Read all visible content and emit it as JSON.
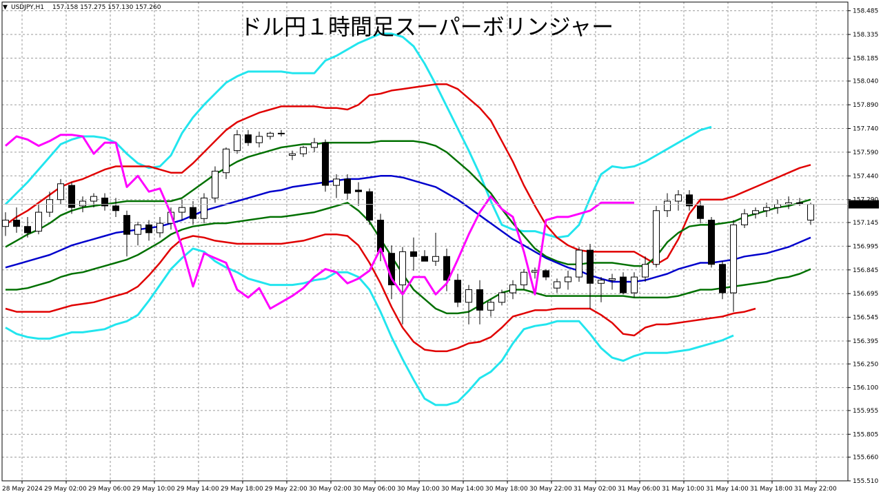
{
  "symbol_info": {
    "symbol": "USDJPY,H1",
    "ohlc": "157.158 157.275 157.130 157.260"
  },
  "chart_data": {
    "type": "candlestick",
    "title": "ドル円１時間足スーパーボリンジャー",
    "grid": true,
    "ylim": [
      155.51,
      158.54
    ],
    "y_ticks": [
      "158.485",
      "158.335",
      "158.185",
      "158.040",
      "157.890",
      "157.740",
      "157.590",
      "157.440",
      "157.290",
      "157.145",
      "156.995",
      "156.845",
      "156.695",
      "156.545",
      "156.395",
      "156.250",
      "156.100",
      "155.955",
      "155.805",
      "155.660",
      "155.510"
    ],
    "x_tick_labels": [
      "28 May 2024",
      "29 May 02:00",
      "29 May 06:00",
      "29 May 10:00",
      "29 May 14:00",
      "29 May 18:00",
      "29 May 22:00",
      "30 May 02:00",
      "30 May 06:00",
      "30 May 10:00",
      "30 May 14:00",
      "30 May 18:00",
      "30 May 22:00",
      "31 May 02:00",
      "31 May 06:00",
      "31 May 10:00",
      "31 May 14:00",
      "31 May 18:00",
      "31 May 22:00"
    ],
    "current_price": "157.260",
    "colors": {
      "up_candle": "#ffffff",
      "down_candle": "#000000",
      "sma": "#0000cc",
      "band_1sigma": "#007000",
      "band_2sigma": "#e00000",
      "band_3sigma": "#22e5ee",
      "lagging_span": "#ff00ff",
      "grid": "#9a9a9a",
      "current_price_tag": "#000000"
    },
    "candles": [
      {
        "o": 157.12,
        "h": 157.21,
        "l": 157.06,
        "c": 157.16
      },
      {
        "o": 157.16,
        "h": 157.24,
        "l": 157.08,
        "c": 157.12
      },
      {
        "o": 157.12,
        "h": 157.18,
        "l": 157.05,
        "c": 157.08
      },
      {
        "o": 157.09,
        "h": 157.26,
        "l": 157.07,
        "c": 157.21
      },
      {
        "o": 157.21,
        "h": 157.34,
        "l": 157.18,
        "c": 157.29
      },
      {
        "o": 157.29,
        "h": 157.42,
        "l": 157.26,
        "c": 157.39
      },
      {
        "o": 157.38,
        "h": 157.4,
        "l": 157.2,
        "c": 157.24
      },
      {
        "o": 157.25,
        "h": 157.31,
        "l": 157.21,
        "c": 157.28
      },
      {
        "o": 157.28,
        "h": 157.33,
        "l": 157.24,
        "c": 157.31
      },
      {
        "o": 157.3,
        "h": 157.33,
        "l": 157.22,
        "c": 157.25
      },
      {
        "o": 157.25,
        "h": 157.3,
        "l": 157.18,
        "c": 157.22
      },
      {
        "o": 157.19,
        "h": 157.22,
        "l": 156.93,
        "c": 157.07
      },
      {
        "o": 157.07,
        "h": 157.15,
        "l": 157.0,
        "c": 157.13
      },
      {
        "o": 157.13,
        "h": 157.16,
        "l": 157.03,
        "c": 157.08
      },
      {
        "o": 157.08,
        "h": 157.18,
        "l": 157.05,
        "c": 157.14
      },
      {
        "o": 157.14,
        "h": 157.24,
        "l": 157.1,
        "c": 157.21
      },
      {
        "o": 157.21,
        "h": 157.29,
        "l": 157.16,
        "c": 157.24
      },
      {
        "o": 157.24,
        "h": 157.28,
        "l": 157.13,
        "c": 157.17
      },
      {
        "o": 157.17,
        "h": 157.33,
        "l": 157.14,
        "c": 157.3
      },
      {
        "o": 157.3,
        "h": 157.5,
        "l": 157.27,
        "c": 157.47
      },
      {
        "o": 157.46,
        "h": 157.62,
        "l": 157.42,
        "c": 157.61
      },
      {
        "o": 157.6,
        "h": 157.73,
        "l": 157.58,
        "c": 157.7
      },
      {
        "o": 157.7,
        "h": 157.73,
        "l": 157.63,
        "c": 157.65
      },
      {
        "o": 157.65,
        "h": 157.72,
        "l": 157.62,
        "c": 157.69
      },
      {
        "o": 157.69,
        "h": 157.72,
        "l": 157.67,
        "c": 157.71
      },
      {
        "o": 157.71,
        "h": 157.73,
        "l": 157.69,
        "c": 157.71
      },
      {
        "o": 157.57,
        "h": 157.6,
        "l": 157.54,
        "c": 157.58
      },
      {
        "o": 157.58,
        "h": 157.63,
        "l": 157.56,
        "c": 157.62
      },
      {
        "o": 157.62,
        "h": 157.68,
        "l": 157.59,
        "c": 157.65
      },
      {
        "o": 157.65,
        "h": 157.67,
        "l": 157.34,
        "c": 157.38
      },
      {
        "o": 157.38,
        "h": 157.45,
        "l": 157.3,
        "c": 157.42
      },
      {
        "o": 157.42,
        "h": 157.45,
        "l": 157.29,
        "c": 157.33
      },
      {
        "o": 157.35,
        "h": 157.4,
        "l": 157.25,
        "c": 157.34
      },
      {
        "o": 157.34,
        "h": 157.36,
        "l": 157.13,
        "c": 157.16
      },
      {
        "o": 157.16,
        "h": 157.2,
        "l": 156.9,
        "c": 156.96
      },
      {
        "o": 156.95,
        "h": 157.0,
        "l": 156.66,
        "c": 156.75
      },
      {
        "o": 156.75,
        "h": 156.99,
        "l": 156.5,
        "c": 156.96
      },
      {
        "o": 156.96,
        "h": 157.05,
        "l": 156.84,
        "c": 156.93
      },
      {
        "o": 156.93,
        "h": 156.97,
        "l": 156.9,
        "c": 156.9
      },
      {
        "o": 156.9,
        "h": 157.08,
        "l": 156.87,
        "c": 156.93
      },
      {
        "o": 156.93,
        "h": 156.98,
        "l": 156.71,
        "c": 156.78
      },
      {
        "o": 156.78,
        "h": 156.82,
        "l": 156.61,
        "c": 156.64
      },
      {
        "o": 156.64,
        "h": 156.75,
        "l": 156.5,
        "c": 156.72
      },
      {
        "o": 156.72,
        "h": 156.78,
        "l": 156.5,
        "c": 156.59
      },
      {
        "o": 156.59,
        "h": 156.66,
        "l": 156.55,
        "c": 156.64
      },
      {
        "o": 156.64,
        "h": 156.72,
        "l": 156.62,
        "c": 156.7
      },
      {
        "o": 156.7,
        "h": 156.78,
        "l": 156.66,
        "c": 156.75
      },
      {
        "o": 156.75,
        "h": 156.85,
        "l": 156.72,
        "c": 156.83
      },
      {
        "o": 156.83,
        "h": 156.86,
        "l": 156.79,
        "c": 156.84
      },
      {
        "o": 156.84,
        "h": 156.85,
        "l": 156.78,
        "c": 156.8
      },
      {
        "o": 156.73,
        "h": 156.79,
        "l": 156.7,
        "c": 156.77
      },
      {
        "o": 156.77,
        "h": 156.84,
        "l": 156.72,
        "c": 156.8
      },
      {
        "o": 156.8,
        "h": 156.99,
        "l": 156.77,
        "c": 156.97
      },
      {
        "o": 156.97,
        "h": 157.01,
        "l": 156.6,
        "c": 156.76
      },
      {
        "o": 156.76,
        "h": 156.8,
        "l": 156.64,
        "c": 156.78
      },
      {
        "o": 156.78,
        "h": 156.82,
        "l": 156.72,
        "c": 156.79
      },
      {
        "o": 156.8,
        "h": 156.83,
        "l": 156.69,
        "c": 156.7
      },
      {
        "o": 156.7,
        "h": 156.83,
        "l": 156.67,
        "c": 156.8
      },
      {
        "o": 156.8,
        "h": 156.93,
        "l": 156.77,
        "c": 156.88
      },
      {
        "o": 156.88,
        "h": 157.25,
        "l": 156.86,
        "c": 157.22
      },
      {
        "o": 157.22,
        "h": 157.33,
        "l": 157.18,
        "c": 157.28
      },
      {
        "o": 157.28,
        "h": 157.35,
        "l": 157.22,
        "c": 157.32
      },
      {
        "o": 157.32,
        "h": 157.35,
        "l": 157.22,
        "c": 157.25
      },
      {
        "o": 157.25,
        "h": 157.28,
        "l": 157.14,
        "c": 157.17
      },
      {
        "o": 157.16,
        "h": 157.18,
        "l": 156.86,
        "c": 156.88
      },
      {
        "o": 156.88,
        "h": 156.9,
        "l": 156.66,
        "c": 156.7
      },
      {
        "o": 156.7,
        "h": 157.16,
        "l": 156.58,
        "c": 157.13
      },
      {
        "o": 157.13,
        "h": 157.23,
        "l": 157.11,
        "c": 157.2
      },
      {
        "o": 157.2,
        "h": 157.24,
        "l": 157.17,
        "c": 157.22
      },
      {
        "o": 157.22,
        "h": 157.27,
        "l": 157.18,
        "c": 157.24
      },
      {
        "o": 157.24,
        "h": 157.29,
        "l": 157.2,
        "c": 157.26
      },
      {
        "o": 157.26,
        "h": 157.31,
        "l": 157.23,
        "c": 157.27
      },
      {
        "o": 157.27,
        "h": 157.3,
        "l": 157.25,
        "c": 157.27
      },
      {
        "o": 157.16,
        "h": 157.27,
        "l": 157.13,
        "c": 157.26
      }
    ],
    "sma": [
      156.86,
      156.88,
      156.9,
      156.92,
      156.94,
      156.97,
      157.0,
      157.02,
      157.04,
      157.06,
      157.08,
      157.09,
      157.1,
      157.11,
      157.12,
      157.14,
      157.16,
      157.19,
      157.22,
      157.24,
      157.26,
      157.28,
      157.3,
      157.32,
      157.34,
      157.35,
      157.37,
      157.38,
      157.39,
      157.4,
      157.41,
      157.42,
      157.42,
      157.43,
      157.44,
      157.44,
      157.43,
      157.41,
      157.39,
      157.37,
      157.33,
      157.29,
      157.24,
      157.19,
      157.14,
      157.09,
      157.04,
      157.0,
      156.96,
      156.92,
      156.89,
      156.86,
      156.84,
      156.81,
      156.79,
      156.77,
      156.77,
      156.77,
      156.78,
      156.8,
      156.82,
      156.85,
      156.87,
      156.89,
      156.89,
      156.9,
      156.91,
      156.93,
      156.94,
      156.95,
      156.97,
      156.99,
      157.02,
      157.05
    ],
    "bands": {
      "p1": [
        156.99,
        157.03,
        157.07,
        157.1,
        157.14,
        157.19,
        157.22,
        157.24,
        157.25,
        157.26,
        157.27,
        157.28,
        157.28,
        157.28,
        157.28,
        157.28,
        157.3,
        157.35,
        157.4,
        157.45,
        157.49,
        157.53,
        157.56,
        157.58,
        157.6,
        157.62,
        157.63,
        157.64,
        157.64,
        157.65,
        157.65,
        157.65,
        157.65,
        157.65,
        157.66,
        157.66,
        157.66,
        157.66,
        157.65,
        157.63,
        157.59,
        157.53,
        157.47,
        157.4,
        157.33,
        157.23,
        157.14,
        157.06,
        156.98,
        156.93,
        156.9,
        156.88,
        156.88,
        156.89,
        156.89,
        156.89,
        156.88,
        156.87,
        156.87,
        156.93,
        157.02,
        157.08,
        157.12,
        157.13,
        157.13,
        157.14,
        157.15,
        157.18,
        157.2,
        157.22,
        157.24,
        157.25,
        157.27,
        157.29
      ],
      "m1": [
        156.72,
        156.72,
        156.73,
        156.75,
        156.77,
        156.8,
        156.82,
        156.83,
        156.85,
        156.87,
        156.89,
        156.91,
        156.94,
        156.98,
        157.02,
        157.07,
        157.1,
        157.12,
        157.13,
        157.14,
        157.14,
        157.15,
        157.16,
        157.17,
        157.18,
        157.18,
        157.19,
        157.2,
        157.21,
        157.23,
        157.25,
        157.27,
        157.22,
        157.15,
        157.04,
        156.93,
        156.82,
        156.72,
        156.66,
        156.6,
        156.57,
        156.57,
        156.58,
        156.62,
        156.66,
        156.7,
        156.72,
        156.72,
        156.7,
        156.68,
        156.68,
        156.68,
        156.68,
        156.68,
        156.68,
        156.68,
        156.68,
        156.67,
        156.67,
        156.67,
        156.67,
        156.68,
        156.7,
        156.72,
        156.72,
        156.73,
        156.74,
        156.75,
        156.76,
        156.77,
        156.79,
        156.8,
        156.82,
        156.85
      ],
      "p2": [
        157.13,
        157.18,
        157.22,
        157.27,
        157.32,
        157.37,
        157.4,
        157.42,
        157.45,
        157.48,
        157.5,
        157.5,
        157.5,
        157.5,
        157.48,
        157.46,
        157.46,
        157.52,
        157.59,
        157.66,
        157.73,
        157.78,
        157.81,
        157.84,
        157.86,
        157.88,
        157.88,
        157.88,
        157.88,
        157.87,
        157.87,
        157.86,
        157.89,
        157.95,
        157.96,
        157.98,
        157.99,
        158.0,
        158.01,
        158.02,
        158.02,
        157.99,
        157.93,
        157.87,
        157.79,
        157.66,
        157.53,
        157.38,
        157.25,
        157.13,
        157.05,
        157.0,
        156.97,
        156.96,
        156.96,
        156.96,
        156.96,
        156.96,
        156.92,
        156.88,
        156.92,
        157.04,
        157.2,
        157.29,
        157.29,
        157.29,
        157.31,
        157.34,
        157.37,
        157.4,
        157.43,
        157.46,
        157.49,
        157.51
      ],
      "m2": [
        156.6,
        156.58,
        156.58,
        156.58,
        156.58,
        156.6,
        156.62,
        156.63,
        156.64,
        156.66,
        156.68,
        156.7,
        156.74,
        156.81,
        156.89,
        156.98,
        157.04,
        157.06,
        157.05,
        157.03,
        157.02,
        157.01,
        157.01,
        157.01,
        157.01,
        157.01,
        157.02,
        157.03,
        157.05,
        157.07,
        157.07,
        157.06,
        157.0,
        156.89,
        156.76,
        156.61,
        156.48,
        156.39,
        156.34,
        156.33,
        156.33,
        156.35,
        156.38,
        156.39,
        156.42,
        156.48,
        156.55,
        156.57,
        156.59,
        156.59,
        156.6,
        156.6,
        156.6,
        156.6,
        156.56,
        156.51,
        156.44,
        156.43,
        156.48,
        156.5,
        156.5,
        156.51,
        156.52,
        156.53,
        156.54,
        156.55,
        156.57,
        156.58,
        156.6
      ],
      "p3": [
        157.26,
        157.33,
        157.4,
        157.48,
        157.56,
        157.64,
        157.67,
        157.69,
        157.69,
        157.68,
        157.65,
        157.58,
        157.52,
        157.49,
        157.5,
        157.57,
        157.71,
        157.81,
        157.89,
        157.96,
        158.03,
        158.07,
        158.1,
        158.1,
        158.1,
        158.1,
        158.09,
        158.09,
        158.09,
        158.17,
        158.2,
        158.24,
        158.28,
        158.31,
        158.34,
        158.34,
        158.32,
        158.26,
        158.15,
        158.02,
        157.88,
        157.74,
        157.6,
        157.45,
        157.28,
        157.13,
        157.1,
        157.09,
        157.09,
        157.07,
        157.05,
        157.06,
        157.13,
        157.3,
        157.45,
        157.5,
        157.49,
        157.5,
        157.53,
        157.57,
        157.61,
        157.65,
        157.69,
        157.73,
        157.75
      ],
      "m3": [
        156.48,
        156.44,
        156.42,
        156.41,
        156.41,
        156.43,
        156.45,
        156.45,
        156.46,
        156.47,
        156.5,
        156.52,
        156.56,
        156.65,
        156.75,
        156.85,
        156.92,
        156.98,
        156.96,
        156.9,
        156.86,
        156.83,
        156.79,
        156.77,
        156.75,
        156.75,
        156.75,
        156.76,
        156.78,
        156.79,
        156.83,
        156.83,
        156.8,
        156.72,
        156.58,
        156.42,
        156.28,
        156.15,
        156.03,
        155.99,
        155.99,
        156.01,
        156.08,
        156.16,
        156.2,
        156.27,
        156.38,
        156.47,
        156.49,
        156.5,
        156.52,
        156.52,
        156.52,
        156.44,
        156.35,
        156.29,
        156.27,
        156.3,
        156.32,
        156.32,
        156.32,
        156.33,
        156.34,
        156.36,
        156.38,
        156.4,
        156.43
      ]
    },
    "lagging_span": [
      157.63,
      157.69,
      157.67,
      157.63,
      157.66,
      157.7,
      157.7,
      157.69,
      157.58,
      157.65,
      157.65,
      157.37,
      157.44,
      157.34,
      157.36,
      157.2,
      156.99,
      156.74,
      156.95,
      156.92,
      156.89,
      156.72,
      156.67,
      156.73,
      156.6,
      156.64,
      156.68,
      156.73,
      156.8,
      156.85,
      156.83,
      156.76,
      156.79,
      156.84,
      156.98,
      156.79,
      156.69,
      156.8,
      156.8,
      156.69,
      156.76,
      156.91,
      157.07,
      157.21,
      157.31,
      157.23,
      157.18,
      156.96,
      156.69,
      157.16,
      157.18,
      157.18,
      157.2,
      157.22,
      157.27,
      157.27,
      157.27,
      157.27
    ]
  }
}
